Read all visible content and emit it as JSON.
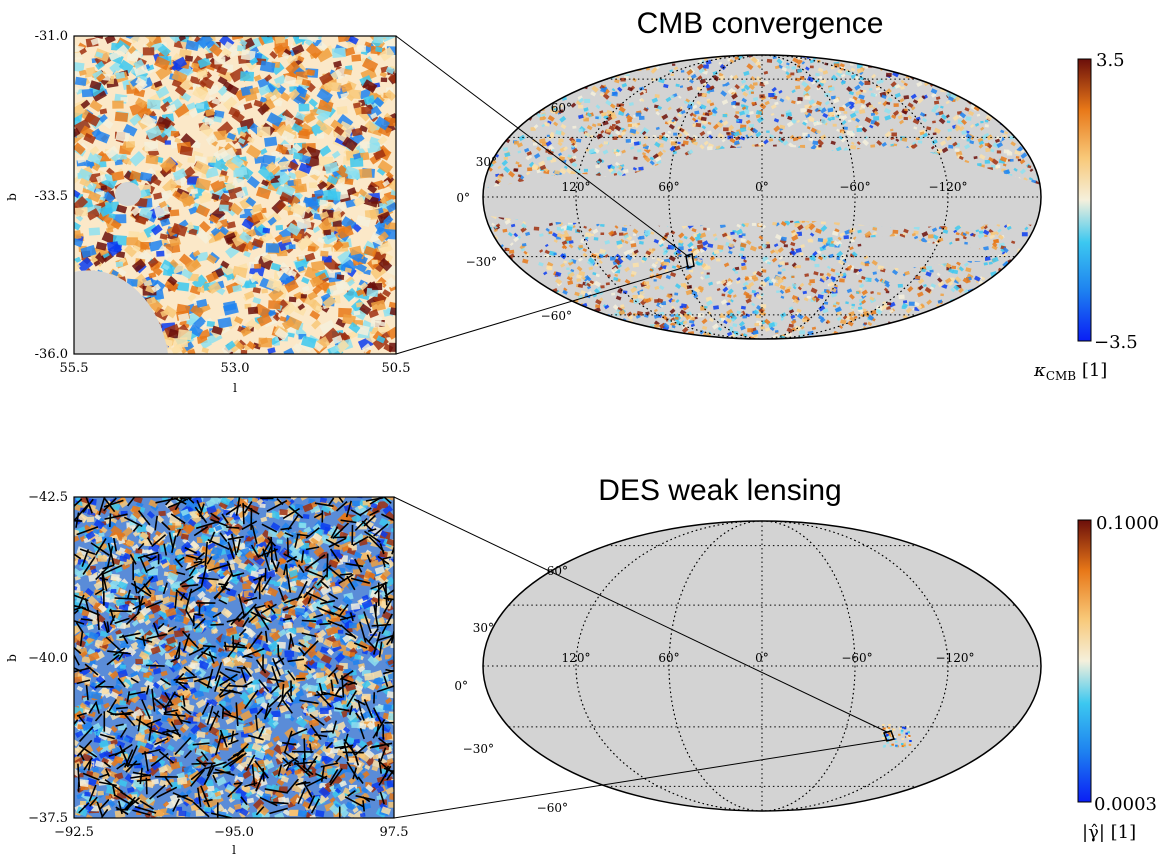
{
  "chart_data": [
    {
      "type": "heatmap",
      "id": "cmb-zoom",
      "title": "",
      "xlabel": "l",
      "ylabel": "b",
      "x_ticks": [
        "55.5",
        "53.0",
        "50.5"
      ],
      "y_ticks": [
        "-31.0",
        "-33.5",
        "-36.0"
      ],
      "xlim": [
        55.5,
        50.5
      ],
      "ylim": [
        -36.0,
        -31.0
      ],
      "colormap": "diverging-blue-cream-orange",
      "masked_color": "#d3d3d3"
    },
    {
      "type": "heatmap",
      "id": "cmb-sky",
      "title": "CMB convergence",
      "projection": "mollweide",
      "lon_ticks": [
        "120°",
        "60°",
        "0°",
        "−60°",
        "−120°"
      ],
      "lat_ticks": [
        "60°",
        "30°",
        "0°",
        "−30°",
        "−60°"
      ],
      "colorbar": {
        "max_label": "3.5",
        "min_label": "−3.5",
        "label": "κ",
        "label_sub": "CMB",
        "label_unit": " [1]",
        "range": [
          -3.5,
          3.5
        ]
      },
      "masked_color": "#d3d3d3"
    },
    {
      "type": "heatmap",
      "id": "des-zoom",
      "title": "",
      "xlabel": "l",
      "ylabel": "b",
      "x_ticks": [
        "−92.5",
        "−95.0",
        "97.5"
      ],
      "y_ticks": [
        "−42.5",
        "−40.0",
        "−37.5"
      ],
      "overlay": "shear whiskers"
    },
    {
      "type": "heatmap",
      "id": "des-sky",
      "title": "DES weak lensing",
      "projection": "mollweide",
      "lon_ticks": [
        "120°",
        "60°",
        "0°",
        "−60°",
        "−120°"
      ],
      "lat_ticks": [
        "60°",
        "30°",
        "0°",
        "−30°",
        "−60°"
      ],
      "colorbar": {
        "max_label": "0.1000",
        "min_label": "0.0003",
        "label": "|γ̂| [1]",
        "range": [
          0.0003,
          0.1
        ]
      },
      "masked_color": "#d3d3d3"
    }
  ]
}
